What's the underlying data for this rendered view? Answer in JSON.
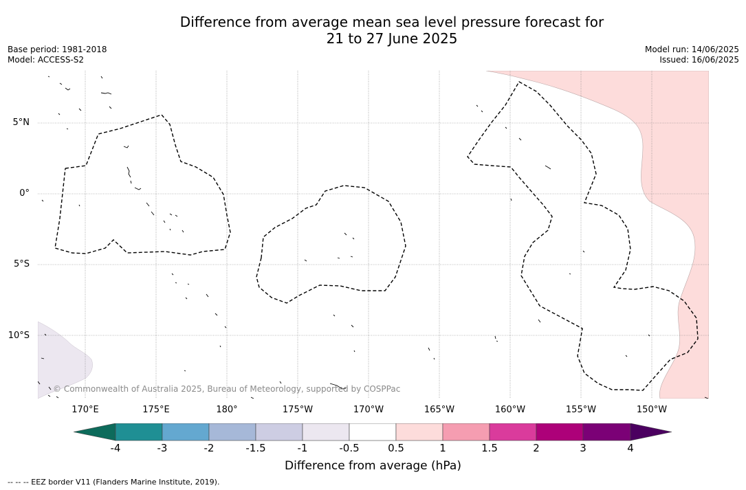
{
  "title_line1": "Difference from average mean sea level pressure forecast for",
  "title_line2": "21 to 27 June 2025",
  "base_period": "Base period: 1981-2018",
  "model": "Model: ACCESS-S2",
  "model_run": "Model run: 14/06/2025",
  "issued": "Issued: 16/06/2025",
  "lat_labels": [
    "5°N",
    "0°",
    "5°S",
    "10°S"
  ],
  "lon_labels": [
    "170°E",
    "175°E",
    "180°",
    "175°W",
    "170°W",
    "165°W",
    "160°W",
    "155°W",
    "150°W"
  ],
  "copyright": "© Commonwealth of Australia 2025, Bureau of Meteorology, supported by COSPPac",
  "colorbar": {
    "ticks": [
      "-4",
      "-3",
      "-2",
      "-1.5",
      "-1",
      "-0.5",
      "0.5",
      "1",
      "1.5",
      "2",
      "3",
      "4"
    ],
    "colors": [
      "#1f8f94",
      "#64a8d0",
      "#a6b8d8",
      "#cdcde3",
      "#ece7f0",
      "#ffffff",
      "#fddcdb",
      "#f59db1",
      "#da3b9c",
      "#ad0179",
      "#7b0176"
    ],
    "low_extend": "#0d6b5b",
    "high_extend": "#4b0060",
    "label": "Difference from average (hPa)"
  },
  "footnote": "--  --  -- EEZ border V11 (Flanders Marine Institute, 2019)."
}
